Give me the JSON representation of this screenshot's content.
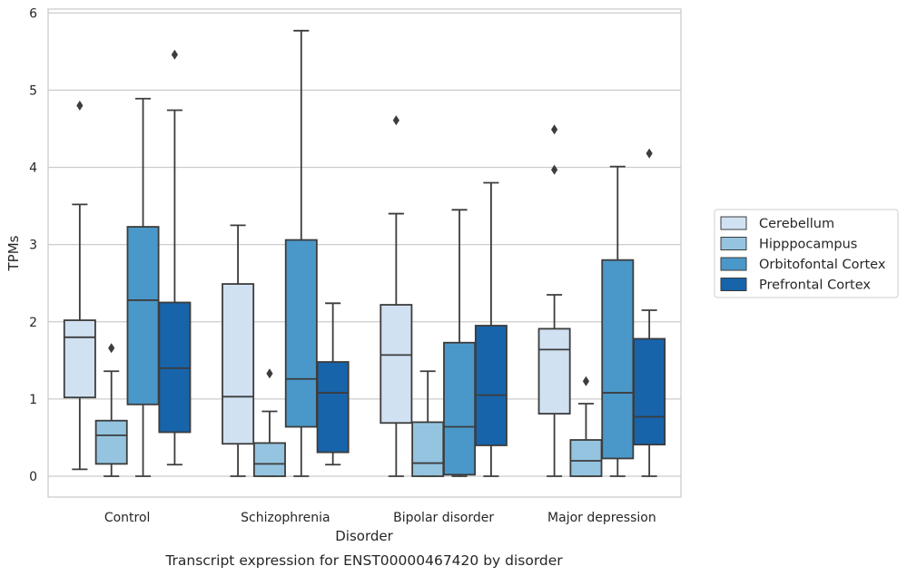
{
  "chart_data": {
    "type": "box",
    "xlabel": "Disorder",
    "ylabel": "TPMs",
    "caption": "Transcript expression for ENST00000467420 by disorder",
    "ylim": [
      -0.27,
      6.05
    ],
    "yticks": [
      0,
      1,
      2,
      3,
      4,
      5,
      6
    ],
    "grid": "horizontal",
    "legend_position": "right",
    "categories": [
      "Control",
      "Schizophrenia",
      "Bipolar disorder",
      "Major depression"
    ],
    "series": [
      {
        "name": "Cerebellum",
        "color": "#d0e1f2",
        "boxes": [
          {
            "whislo": 0.09,
            "q1": 1.02,
            "med": 1.8,
            "q3": 2.02,
            "whishi": 3.52,
            "fliers": [
              4.8
            ]
          },
          {
            "whislo": 0.0,
            "q1": 0.42,
            "med": 1.03,
            "q3": 2.49,
            "whishi": 3.25,
            "fliers": []
          },
          {
            "whislo": 0.0,
            "q1": 0.69,
            "med": 1.57,
            "q3": 2.22,
            "whishi": 3.4,
            "fliers": [
              4.61
            ]
          },
          {
            "whislo": 0.0,
            "q1": 0.81,
            "med": 1.64,
            "q3": 1.91,
            "whishi": 2.35,
            "fliers": [
              3.97,
              4.49
            ]
          }
        ]
      },
      {
        "name": "Hipppocampus",
        "color": "#94c4df",
        "boxes": [
          {
            "whislo": 0.0,
            "q1": 0.16,
            "med": 0.53,
            "q3": 0.72,
            "whishi": 1.36,
            "fliers": [
              1.66
            ]
          },
          {
            "whislo": 0.0,
            "q1": 0.0,
            "med": 0.16,
            "q3": 0.43,
            "whishi": 0.84,
            "fliers": [
              1.33
            ]
          },
          {
            "whislo": 0.0,
            "q1": 0.0,
            "med": 0.17,
            "q3": 0.7,
            "whishi": 1.36,
            "fliers": []
          },
          {
            "whislo": 0.0,
            "q1": 0.0,
            "med": 0.2,
            "q3": 0.47,
            "whishi": 0.94,
            "fliers": [
              1.23
            ]
          }
        ]
      },
      {
        "name": "Orbitofontal Cortex",
        "color": "#4a98c9",
        "boxes": [
          {
            "whislo": 0.0,
            "q1": 0.93,
            "med": 2.28,
            "q3": 3.23,
            "whishi": 4.89,
            "fliers": []
          },
          {
            "whislo": 0.0,
            "q1": 0.64,
            "med": 1.26,
            "q3": 3.06,
            "whishi": 5.77,
            "fliers": []
          },
          {
            "whislo": 0.0,
            "q1": 0.02,
            "med": 0.64,
            "q3": 1.73,
            "whishi": 3.45,
            "fliers": []
          },
          {
            "whislo": 0.0,
            "q1": 0.23,
            "med": 1.08,
            "q3": 2.8,
            "whishi": 4.01,
            "fliers": []
          }
        ]
      },
      {
        "name": "Prefrontal Cortex",
        "color": "#1764ab",
        "boxes": [
          {
            "whislo": 0.15,
            "q1": 0.57,
            "med": 1.4,
            "q3": 2.25,
            "whishi": 4.74,
            "fliers": [
              5.46
            ]
          },
          {
            "whislo": 0.15,
            "q1": 0.31,
            "med": 1.08,
            "q3": 1.48,
            "whishi": 2.24,
            "fliers": []
          },
          {
            "whislo": 0.0,
            "q1": 0.4,
            "med": 1.05,
            "q3": 1.95,
            "whishi": 3.8,
            "fliers": []
          },
          {
            "whislo": 0.0,
            "q1": 0.41,
            "med": 0.77,
            "q3": 1.78,
            "whishi": 2.15,
            "fliers": [
              4.18
            ]
          }
        ]
      }
    ]
  }
}
